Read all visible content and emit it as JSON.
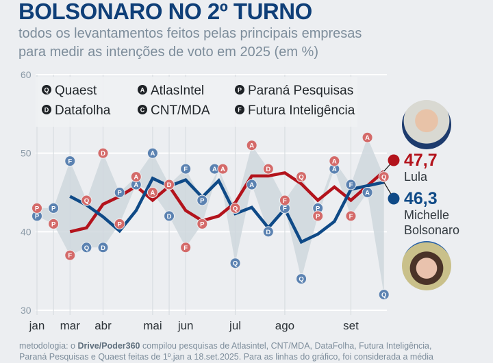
{
  "header": {
    "title": "BOLSONARO NO 2º TURNO",
    "subtitle_line1": "todos os levantamentos feitos pelas principais empresas",
    "subtitle_line2": "para medir as intenções de voto em 2025 (em %)"
  },
  "legend": [
    {
      "letter": "Q",
      "label": "Quaest"
    },
    {
      "letter": "A",
      "label": "AtlasIntel"
    },
    {
      "letter": "P",
      "label": "Paraná Pesquisas"
    },
    {
      "letter": "D",
      "label": "Datafolha"
    },
    {
      "letter": "C",
      "label": "CNT/MDA"
    },
    {
      "letter": "F",
      "label": "Futura Inteligência"
    }
  ],
  "chart_data": {
    "type": "line",
    "title": "BOLSONARO NO 2º TURNO",
    "ylim": [
      30,
      60
    ],
    "y_ticks": [
      "60",
      "50",
      "40",
      "30"
    ],
    "x_tick_labels": [
      {
        "index": 0,
        "label": "jan"
      },
      {
        "index": 2,
        "label": "mar"
      },
      {
        "index": 4,
        "label": "abr"
      },
      {
        "index": 7,
        "label": "mai"
      },
      {
        "index": 9,
        "label": "jun"
      },
      {
        "index": 12,
        "label": "jul"
      },
      {
        "index": 15,
        "label": "ago"
      },
      {
        "index": 19,
        "label": "set"
      }
    ],
    "grid": true,
    "colors": {
      "lula": "#b3131c",
      "michelle": "#0f4a87",
      "lula_marker": "#d46a69",
      "michelle_marker": "#5b82b1",
      "range_fill": "#cfd7dd"
    },
    "polls": [
      {
        "index": 0,
        "institute": "P",
        "lula": 43,
        "michelle": 42
      },
      {
        "index": 1,
        "institute": "P",
        "lula": 41,
        "michelle": 43
      },
      {
        "index": 2,
        "institute": "F",
        "lula": 37,
        "michelle": 49
      },
      {
        "index": 3,
        "institute": "Q",
        "lula": 44,
        "michelle": 38
      },
      {
        "index": 4,
        "institute": "D",
        "lula": 50,
        "michelle": 38
      },
      {
        "index": 5,
        "institute": "P",
        "lula": 41,
        "michelle": 45
      },
      {
        "index": 6,
        "institute": "A",
        "lula": 47,
        "michelle": 46
      },
      {
        "index": 7,
        "institute": "A",
        "lula": 45,
        "michelle": 50
      },
      {
        "index": 8,
        "institute": "D",
        "lula": 46,
        "michelle": 42
      },
      {
        "index": 9,
        "institute": "F",
        "lula": 38,
        "michelle": 48
      },
      {
        "index": 10,
        "institute": "P",
        "lula": 41,
        "michelle": 44
      },
      {
        "index": 11,
        "institute": "A",
        "lula": 48,
        "michelle": 48
      },
      {
        "index": 12,
        "institute": "Q",
        "lula": 43,
        "michelle": 36
      },
      {
        "index": 13,
        "institute": "A",
        "lula": 51,
        "michelle": 46
      },
      {
        "index": 14,
        "institute": "D",
        "lula": 48,
        "michelle": 40
      },
      {
        "index": 15,
        "institute": "F",
        "lula": 44,
        "michelle": 43
      },
      {
        "index": 16,
        "institute": "Q",
        "lula": 47,
        "michelle": 34
      },
      {
        "index": 17,
        "institute": "P",
        "lula": 42,
        "michelle": 43
      },
      {
        "index": 18,
        "institute": "A",
        "lula": 49,
        "michelle": 48
      },
      {
        "index": 19,
        "institute": "F",
        "lula": 42,
        "michelle": 46
      },
      {
        "index": 20,
        "institute": "A",
        "lula": 52,
        "michelle": 45
      },
      {
        "index": 21,
        "institute": "Q",
        "lula": 47,
        "michelle": 32
      }
    ],
    "series": [
      {
        "name": "Lula",
        "x": [
          2,
          3,
          4,
          5,
          6,
          7,
          8,
          9,
          10,
          11,
          12,
          13,
          14,
          15,
          16,
          17,
          18,
          19,
          21
        ],
        "values": [
          40.0,
          40.5,
          43.5,
          44.5,
          45.8,
          44.0,
          45.8,
          42.7,
          41.4,
          42.0,
          43.7,
          47.1,
          47.1,
          47.5,
          46.1,
          44.0,
          45.7,
          44.0,
          47.7
        ]
      },
      {
        "name": "Michelle Bolsonaro",
        "x": [
          2,
          3,
          4,
          5,
          6,
          7,
          8,
          9,
          10,
          11,
          12,
          13,
          14,
          15,
          16,
          17,
          18,
          19,
          21
        ],
        "values": [
          44.5,
          43.4,
          41.9,
          40.1,
          42.7,
          46.8,
          45.8,
          46.6,
          44.4,
          46.5,
          42.3,
          43.1,
          40.5,
          42.9,
          38.7,
          39.7,
          41.3,
          45.4,
          46.3
        ]
      }
    ]
  },
  "endpoints": {
    "lula": {
      "value": "47,7",
      "name": "Lula"
    },
    "michelle": {
      "value": "46,3",
      "name_line1": "Michelle",
      "name_line2": "Bolsonaro"
    }
  },
  "footer": {
    "line1_prefix": "metodologia: o ",
    "line1_bold": "Drive/Poder360",
    "line1_rest": " compilou pesquisas de Atlasintel, CNT/MDA, DataFolha, Futura Inteligência,",
    "line2": "Paraná Pesquisas e Quaest feitas de 1º.jan a 18.set.2025. Para as linhas do gráfico, foi considerada a média"
  }
}
